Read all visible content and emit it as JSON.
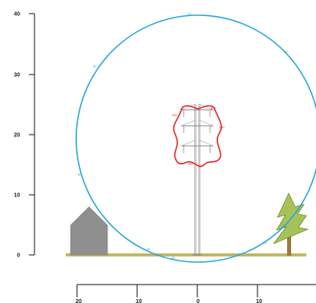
{
  "y_axis": {
    "tick_labels": [
      "0",
      "10",
      "20",
      "30",
      "40"
    ],
    "tick_values": [
      0,
      10,
      20,
      30,
      40
    ]
  },
  "x_axis": {
    "tick_labels": [
      "20",
      "10",
      "0",
      "10"
    ],
    "tick_values": [
      -20,
      -10,
      0,
      10
    ]
  },
  "outer_contour": {
    "color": "#2aa7d9",
    "labels": [
      "50",
      "50",
      "50",
      "50",
      "50",
      "50",
      "50",
      "50"
    ]
  },
  "inner_contour": {
    "color": "#e0262b",
    "labels": [
      "100",
      "100",
      "100",
      "100"
    ]
  },
  "ground": {
    "color": "#c8bd63"
  },
  "house": {
    "color": "#8f8f8f"
  },
  "tree": {
    "foliage_color": "#a8c25a",
    "trunk_color": "#9a7a3a"
  },
  "pylon": {
    "color": "#888888"
  }
}
